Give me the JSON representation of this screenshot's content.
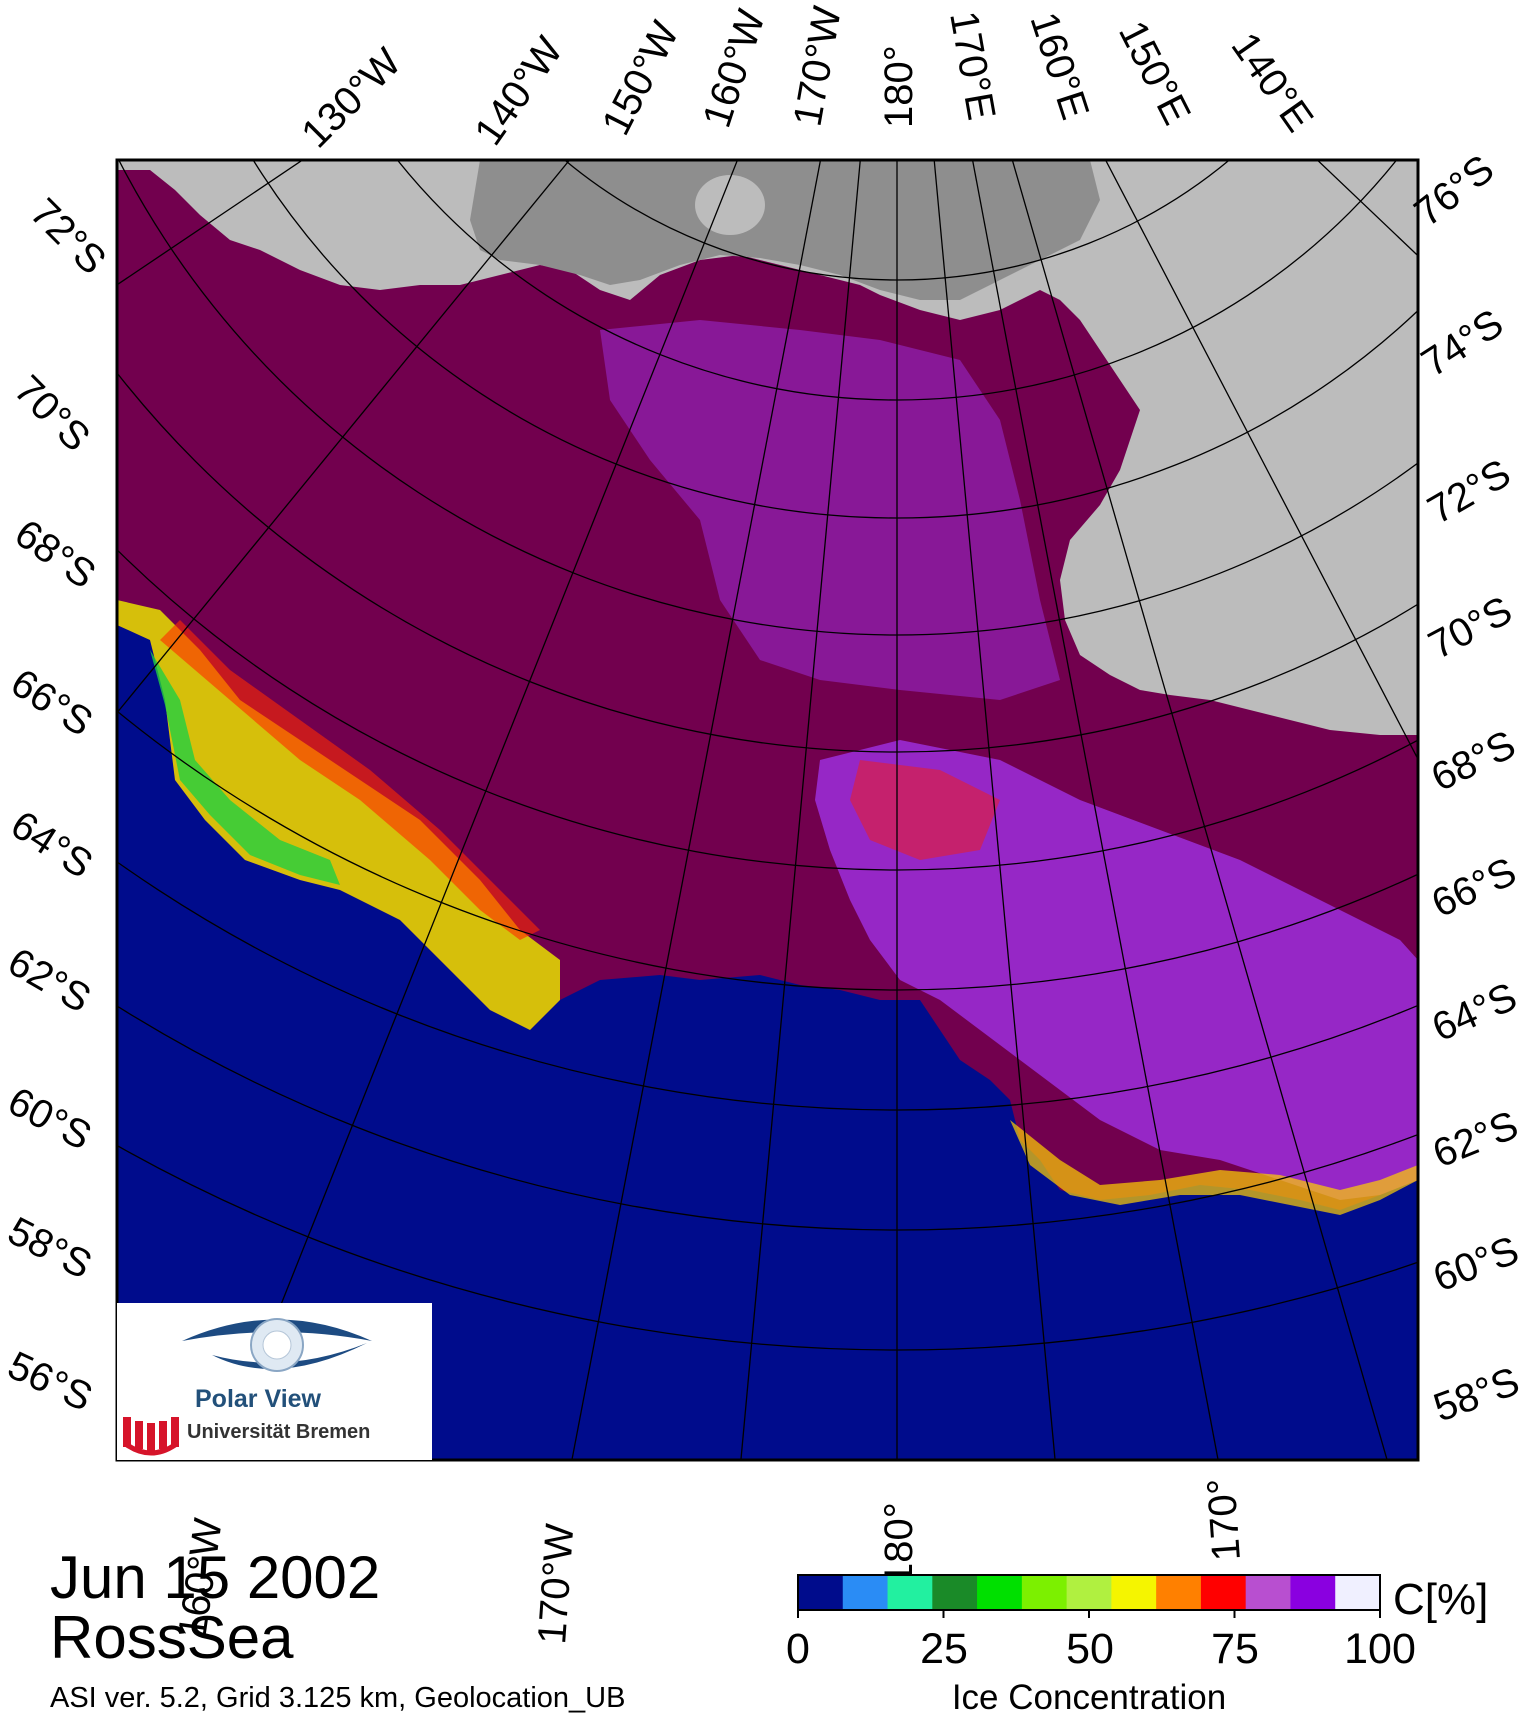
{
  "map": {
    "date": "Jun 15 2002",
    "region": "RossSea",
    "info": "ASI ver. 5.2,  Grid 3.125 km, Geolocation_UB",
    "top_lon_labels": [
      "130°W",
      "140°W",
      "150°W",
      "160°W",
      "170°W",
      "180°",
      "170°E",
      "160°E",
      "150°E",
      "140°E"
    ],
    "left_lat_labels": [
      "72°S",
      "70°S",
      "68°S",
      "66°S",
      "64°S",
      "62°S",
      "60°S",
      "58°S",
      "56°S"
    ],
    "right_lat_labels": [
      "76°S",
      "74°S",
      "72°S",
      "70°S",
      "68°S",
      "66°S",
      "64°S",
      "62°S",
      "60°S",
      "58°S"
    ],
    "bottom_lon_labels": [
      "160°W",
      "170°W",
      "180°",
      "170°"
    ],
    "colors": {
      "ocean": "#000c8c",
      "pack_ice": "#72004e",
      "land": "#bcbcbc",
      "land_dark": "#8e8e8e",
      "mixed_ice": "#9a2bd4"
    }
  },
  "colorbar": {
    "unit": "C[%]",
    "title": "Ice Concentration",
    "ticks": [
      "0",
      "25",
      "50",
      "75",
      "100"
    ],
    "colors": [
      "#000c8c",
      "#2a8cf5",
      "#22f0a0",
      "#1a8a28",
      "#00e000",
      "#7cf000",
      "#b0f040",
      "#f5f500",
      "#ff8000",
      "#ff0000",
      "#b84fd0",
      "#8a00e0",
      "#f0f0ff"
    ]
  },
  "logo": {
    "name": "Polar View",
    "university": "Universität Bremen"
  }
}
